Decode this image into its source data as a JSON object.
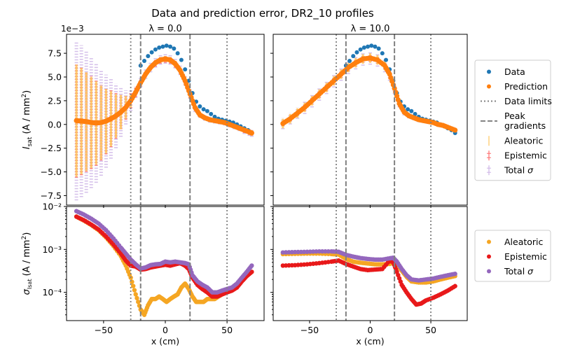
{
  "figure": {
    "title": "Data and prediction error, DR2_10 profiles"
  },
  "colors": {
    "data": "#1f77b4",
    "prediction": "#ff7f0e",
    "aleatoric_bar": "#ffc65c",
    "epistemic_bar": "#ff6a6a",
    "total_bar": "#cdb4e6",
    "aleatoric_pt": "#f5a623",
    "epistemic_pt": "#e8191a",
    "total_pt": "#9467bd",
    "guides": "#808080"
  },
  "chart_data": [
    {
      "id": "top-left",
      "type": "scatter",
      "title": "λ = 0.0",
      "ylabel": "I_sat (A / mm²)",
      "offset_label": "1e−3",
      "xlim": [
        -80,
        80
      ],
      "ylim": [
        -8.5,
        9.5
      ],
      "yticks": [
        "7.5",
        "5.0",
        "2.5",
        "0.0",
        "−2.5",
        "−5.0",
        "−7.5"
      ],
      "yticks_values": [
        7.5,
        5.0,
        2.5,
        0.0,
        -2.5,
        -5.0,
        -7.5
      ],
      "data_limits": [
        -28,
        50
      ],
      "peak_gradients": [
        -20,
        20
      ],
      "series": [
        {
          "name": "Data",
          "x": [
            -20,
            -17,
            -14,
            -11,
            -8,
            -5,
            -2,
            1,
            4,
            7,
            10,
            13,
            16,
            19,
            22,
            25,
            28,
            31,
            34,
            37,
            40,
            43,
            46,
            49,
            52,
            55,
            58,
            61,
            64,
            67,
            70
          ],
          "y": [
            6.2,
            6.7,
            7.2,
            7.6,
            7.9,
            8.1,
            8.2,
            8.3,
            8.2,
            8.0,
            7.5,
            6.8,
            5.8,
            4.6,
            3.3,
            2.4,
            1.9,
            1.6,
            1.4,
            1.1,
            0.8,
            0.6,
            0.5,
            0.4,
            0.3,
            0.2,
            0.0,
            -0.2,
            -0.4,
            -0.6,
            -0.9
          ]
        },
        {
          "name": "Prediction",
          "x": [
            -72,
            -68,
            -64,
            -60,
            -56,
            -52,
            -48,
            -44,
            -40,
            -36,
            -32,
            -28,
            -24,
            -20,
            -16,
            -12,
            -8,
            -4,
            0,
            4,
            8,
            12,
            16,
            20,
            24,
            28,
            32,
            36,
            40,
            44,
            48,
            52,
            56,
            60,
            64,
            68,
            70
          ],
          "y": [
            0.4,
            0.35,
            0.3,
            0.2,
            0.15,
            0.2,
            0.35,
            0.6,
            0.9,
            1.3,
            1.8,
            2.5,
            3.4,
            4.4,
            5.3,
            6.0,
            6.5,
            6.8,
            6.9,
            6.8,
            6.4,
            5.7,
            4.6,
            3.2,
            1.8,
            1.0,
            0.7,
            0.5,
            0.4,
            0.3,
            0.2,
            0.0,
            -0.2,
            -0.4,
            -0.6,
            -0.8,
            -0.9
          ]
        }
      ],
      "uncertainty_sigma": {
        "aleatoric": [
          5.9,
          5.6,
          5.2,
          4.8,
          4.4,
          3.9,
          3.4,
          2.9,
          2.3,
          1.8,
          1.2,
          0.7,
          0.4,
          0.3,
          0.3,
          0.3,
          0.3,
          0.3,
          0.3,
          0.3,
          0.3,
          0.3,
          0.3,
          0.3,
          0.3,
          0.3,
          0.2,
          0.2,
          0.2,
          0.2,
          0.2,
          0.2,
          0.2,
          0.2,
          0.2,
          0.3,
          0.3
        ],
        "epistemic": [
          6.0,
          5.7,
          5.3,
          4.9,
          4.5,
          4.0,
          3.5,
          3.0,
          2.4,
          1.8,
          1.3,
          0.8,
          0.5,
          0.4,
          0.3,
          0.3,
          0.4,
          0.4,
          0.4,
          0.4,
          0.4,
          0.3,
          0.3,
          0.4,
          0.3,
          0.2,
          0.2,
          0.2,
          0.2,
          0.2,
          0.2,
          0.2,
          0.2,
          0.2,
          0.3,
          0.3,
          0.3
        ],
        "total": [
          8.4,
          8.0,
          7.5,
          6.9,
          6.3,
          5.6,
          4.9,
          4.2,
          3.4,
          2.6,
          1.8,
          1.1,
          0.6,
          0.5,
          0.5,
          0.5,
          0.5,
          0.5,
          0.5,
          0.5,
          0.5,
          0.5,
          0.5,
          0.5,
          0.5,
          0.3,
          0.3,
          0.3,
          0.3,
          0.3,
          0.3,
          0.3,
          0.3,
          0.3,
          0.4,
          0.4,
          0.4
        ]
      }
    },
    {
      "id": "top-right",
      "type": "scatter",
      "title": "λ = 10.0",
      "xlim": [
        -80,
        80
      ],
      "ylim": [
        -8.5,
        9.5
      ],
      "data_limits": [
        -28,
        50
      ],
      "peak_gradients": [
        -20,
        20
      ],
      "series": [
        {
          "name": "Data",
          "x": [
            -20,
            -17,
            -14,
            -11,
            -8,
            -5,
            -2,
            1,
            4,
            7,
            10,
            13,
            16,
            19,
            22,
            25,
            28,
            31,
            34,
            37,
            40,
            43,
            46,
            49,
            52,
            55,
            58,
            61,
            64,
            67,
            70
          ],
          "y": [
            6.2,
            6.7,
            7.2,
            7.6,
            7.9,
            8.1,
            8.2,
            8.3,
            8.2,
            8.0,
            7.5,
            6.8,
            5.8,
            4.6,
            3.3,
            2.4,
            1.9,
            1.6,
            1.4,
            1.1,
            0.8,
            0.6,
            0.5,
            0.4,
            0.3,
            0.2,
            0.0,
            -0.2,
            -0.4,
            -0.6,
            -0.9
          ]
        },
        {
          "name": "Prediction",
          "x": [
            -72,
            -66,
            -60,
            -54,
            -48,
            -42,
            -36,
            -30,
            -24,
            -18,
            -12,
            -6,
            0,
            6,
            12,
            16,
            20,
            24,
            28,
            32,
            36,
            40,
            44,
            48,
            52,
            56,
            60,
            64,
            70
          ],
          "y": [
            0.1,
            0.6,
            1.2,
            1.8,
            2.5,
            3.2,
            3.9,
            4.6,
            5.3,
            6.0,
            6.5,
            6.9,
            7.0,
            6.8,
            6.2,
            5.3,
            3.8,
            2.2,
            1.3,
            0.9,
            0.7,
            0.5,
            0.4,
            0.3,
            0.2,
            0.0,
            -0.1,
            -0.3,
            -0.6
          ]
        }
      ],
      "uncertainty_sigma": {
        "aleatoric": [
          0.5,
          0.5,
          0.5,
          0.5,
          0.5,
          0.5,
          0.5,
          0.5,
          0.5,
          0.5,
          0.5,
          0.5,
          0.5,
          0.5,
          0.5,
          0.4,
          0.4,
          0.3,
          0.3,
          0.2,
          0.2,
          0.2,
          0.2,
          0.2,
          0.2,
          0.2,
          0.2,
          0.2,
          0.2
        ],
        "epistemic": [
          0.3,
          0.3,
          0.3,
          0.4,
          0.4,
          0.4,
          0.4,
          0.4,
          0.4,
          0.4,
          0.4,
          0.4,
          0.4,
          0.4,
          0.4,
          0.5,
          0.4,
          0.3,
          0.2,
          0.1,
          0.1,
          0.1,
          0.1,
          0.1,
          0.1,
          0.1,
          0.1,
          0.1,
          0.1
        ],
        "total": [
          0.6,
          0.6,
          0.6,
          0.7,
          0.7,
          0.7,
          0.7,
          0.7,
          0.7,
          0.7,
          0.7,
          0.7,
          0.7,
          0.7,
          0.7,
          0.7,
          0.6,
          0.4,
          0.35,
          0.25,
          0.25,
          0.25,
          0.25,
          0.25,
          0.25,
          0.25,
          0.25,
          0.25,
          0.25
        ]
      }
    },
    {
      "id": "bottom-left",
      "type": "scatter",
      "xlabel": "x (cm)",
      "ylabel": "σ_Isat (A / mm²)",
      "scale_y": "log",
      "xlim": [
        -80,
        80
      ],
      "ylim": [
        2.2e-05,
        0.01
      ],
      "xticks": [
        "−50",
        "0",
        "50"
      ],
      "xticks_values": [
        -50,
        0,
        50
      ],
      "yticks": [
        "10⁻²",
        "10⁻³",
        "10⁻⁴"
      ],
      "yticks_values": [
        0.01,
        0.001,
        0.0001
      ],
      "data_limits": [
        -28,
        50
      ],
      "peak_gradients": [
        -20,
        20
      ],
      "series": [
        {
          "name": "Aleatoric",
          "x": [
            -72,
            -66,
            -60,
            -54,
            -48,
            -42,
            -36,
            -32,
            -28,
            -24,
            -20,
            -17,
            -14,
            -11,
            -8,
            -5,
            -2,
            1,
            4,
            7,
            10,
            13,
            16,
            19,
            22,
            25,
            28,
            31,
            34,
            37,
            40,
            43,
            46,
            49,
            52,
            55,
            58,
            61,
            64,
            67,
            70
          ],
          "y": [
            0.0058,
            0.0047,
            0.0037,
            0.0028,
            0.0019,
            0.0012,
            0.0007,
            0.00042,
            0.00022,
            9e-05,
            4e-05,
            3e-05,
            5e-05,
            7e-05,
            7e-05,
            8e-05,
            7e-05,
            6e-05,
            7e-05,
            8e-05,
            9e-05,
            0.00013,
            0.00016,
            0.00012,
            8e-05,
            6e-05,
            6e-05,
            6e-05,
            7e-05,
            7e-05,
            7e-05,
            8e-05,
            9e-05,
            0.0001,
            0.00011,
            0.00013,
            0.00015,
            0.00018,
            0.00022,
            0.00026,
            0.0003
          ]
        },
        {
          "name": "Epistemic",
          "x": [
            -72,
            -66,
            -60,
            -54,
            -48,
            -42,
            -36,
            -32,
            -28,
            -24,
            -20,
            -16,
            -12,
            -8,
            -4,
            0,
            4,
            8,
            12,
            16,
            19,
            22,
            26,
            30,
            34,
            38,
            42,
            46,
            50,
            54,
            58,
            62,
            66,
            70
          ],
          "y": [
            0.0058,
            0.0048,
            0.0038,
            0.0029,
            0.002,
            0.0013,
            0.0008,
            0.00055,
            0.00042,
            0.0004,
            0.00034,
            0.00035,
            0.00038,
            0.0004,
            0.00042,
            0.00044,
            0.00042,
            0.00045,
            0.00048,
            0.00042,
            0.00035,
            0.00022,
            0.00015,
            0.00012,
            0.0001,
            8e-05,
            8e-05,
            9e-05,
            0.0001,
            0.00011,
            0.00013,
            0.00018,
            0.00024,
            0.0003
          ]
        },
        {
          "name": "Total σ",
          "x": [
            -72,
            -66,
            -60,
            -54,
            -48,
            -42,
            -36,
            -32,
            -28,
            -24,
            -20,
            -16,
            -12,
            -8,
            -4,
            0,
            4,
            8,
            12,
            16,
            19,
            22,
            26,
            30,
            34,
            38,
            42,
            46,
            50,
            54,
            58,
            62,
            66,
            70
          ],
          "y": [
            0.0078,
            0.0065,
            0.0052,
            0.004,
            0.0028,
            0.0018,
            0.0011,
            0.0008,
            0.00058,
            0.00045,
            0.00036,
            0.00038,
            0.00043,
            0.00045,
            0.00046,
            0.00052,
            0.0005,
            0.00052,
            0.0005,
            0.00048,
            0.00045,
            0.00025,
            0.00018,
            0.00015,
            0.00013,
            0.0001,
            0.0001,
            0.00011,
            0.00012,
            0.00013,
            0.00016,
            0.00022,
            0.0003,
            0.00042
          ]
        }
      ]
    },
    {
      "id": "bottom-right",
      "type": "scatter",
      "xlabel": "x (cm)",
      "scale_y": "log",
      "xlim": [
        -80,
        80
      ],
      "ylim": [
        2.2e-05,
        0.01
      ],
      "xticks": [
        "−50",
        "0",
        "50"
      ],
      "xticks_values": [
        -50,
        0,
        50
      ],
      "data_limits": [
        -28,
        50
      ],
      "peak_gradients": [
        -20,
        20
      ],
      "series": [
        {
          "name": "Aleatoric",
          "x": [
            -72,
            -62,
            -52,
            -42,
            -32,
            -26,
            -20,
            -14,
            -8,
            -2,
            4,
            10,
            16,
            19,
            22,
            26,
            30,
            34,
            40,
            46,
            52,
            58,
            64,
            70
          ],
          "y": [
            0.00078,
            0.00079,
            0.0008,
            0.0008,
            0.00078,
            0.00076,
            0.0006,
            0.00052,
            0.00049,
            0.00047,
            0.00045,
            0.00045,
            0.00046,
            0.0005,
            0.00045,
            0.00032,
            0.00023,
            0.00018,
            0.00017,
            0.00017,
            0.00018,
            0.0002,
            0.00022,
            0.00024
          ]
        },
        {
          "name": "Epistemic",
          "x": [
            -72,
            -62,
            -52,
            -42,
            -32,
            -26,
            -20,
            -14,
            -8,
            -2,
            4,
            10,
            16,
            19,
            22,
            26,
            30,
            34,
            38,
            42,
            46,
            52,
            58,
            64,
            70
          ],
          "y": [
            0.00042,
            0.00043,
            0.00045,
            0.00048,
            0.00052,
            0.00055,
            0.00046,
            0.0004,
            0.00035,
            0.00033,
            0.00034,
            0.00035,
            0.00055,
            0.0005,
            0.0003,
            0.00015,
            0.0001,
            7e-05,
            5.2e-05,
            5.5e-05,
            6.5e-05,
            7.5e-05,
            9e-05,
            0.00011,
            0.00014
          ]
        },
        {
          "name": "Total σ",
          "x": [
            -72,
            -62,
            -52,
            -42,
            -32,
            -26,
            -20,
            -14,
            -8,
            -2,
            4,
            10,
            16,
            19,
            22,
            26,
            30,
            34,
            40,
            46,
            52,
            58,
            64,
            70
          ],
          "y": [
            0.00085,
            0.00087,
            0.00088,
            0.0009,
            0.0009,
            0.00088,
            0.00075,
            0.00068,
            0.00063,
            0.0006,
            0.00058,
            0.00058,
            0.00062,
            0.00064,
            0.00052,
            0.00035,
            0.00025,
            0.0002,
            0.00019,
            0.0002,
            0.00021,
            0.00023,
            0.00025,
            0.00027
          ]
        }
      ]
    }
  ],
  "legend_top": [
    {
      "label": "Data",
      "kind": "dot",
      "color_key": "data"
    },
    {
      "label": "Prediction",
      "kind": "dot",
      "color_key": "prediction"
    },
    {
      "label": "Data limits",
      "kind": "dotted",
      "color_key": "guides"
    },
    {
      "label": "Peak gradients",
      "kind": "dashed",
      "color_key": "guides"
    },
    {
      "label": "Aleatoric",
      "kind": "bar",
      "color_key": "aleatoric_bar"
    },
    {
      "label": "Epistemic",
      "kind": "bar",
      "color_key": "epistemic_bar"
    },
    {
      "label": "Total σ",
      "kind": "bar",
      "color_key": "total_bar"
    }
  ],
  "legend_bottom": [
    {
      "label": "Aleatoric",
      "kind": "dot",
      "color_key": "aleatoric_pt"
    },
    {
      "label": "Epistemic",
      "kind": "dot",
      "color_key": "epistemic_pt"
    },
    {
      "label": "Total σ",
      "kind": "dot",
      "color_key": "total_pt"
    }
  ]
}
